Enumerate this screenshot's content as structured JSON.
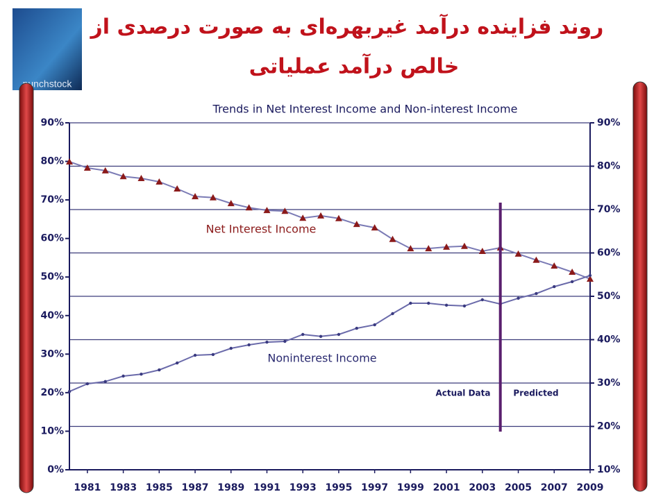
{
  "slide": {
    "title_lines": [
      "روند فزاینده درآمد غیربهره‌ای به صورت درصدی از",
      "خالص درآمد عملیاتی"
    ],
    "logo": "punchstock"
  },
  "chart_data": {
    "type": "line",
    "title": "Trends in Net Interest Income and Non-interest Income",
    "x": [
      1980,
      1981,
      1982,
      1983,
      1984,
      1985,
      1986,
      1987,
      1988,
      1989,
      1990,
      1991,
      1992,
      1993,
      1994,
      1995,
      1996,
      1997,
      1998,
      1999,
      2000,
      2001,
      2002,
      2003,
      2004,
      2005,
      2006,
      2007,
      2008,
      2009
    ],
    "series": [
      {
        "name": "Net Interest Income",
        "color": "#7b7bb5",
        "marker": "triangle",
        "marker_color": "#8b1a1a",
        "values": [
          79.9,
          78.3,
          77.6,
          76.1,
          75.6,
          74.7,
          72.9,
          70.9,
          70.6,
          69.1,
          68,
          67.3,
          67.1,
          65.3,
          65.9,
          65.2,
          63.7,
          62.8,
          59.8,
          57.4,
          57.4,
          57.8,
          58,
          56.7,
          57.6,
          56,
          54.4,
          52.9,
          51.3,
          49.5
        ]
      },
      {
        "name": "Noninterest Income",
        "color": "#6a6aaa",
        "marker": "circle",
        "marker_color": "#3a3a80",
        "values": [
          20.3,
          22.3,
          22.9,
          24.3,
          24.8,
          25.9,
          27.7,
          29.7,
          29.9,
          31.5,
          32.4,
          33.1,
          33.3,
          35.1,
          34.6,
          35.1,
          36.7,
          37.6,
          40.5,
          43.2,
          43.2,
          42.7,
          42.5,
          44.1,
          43,
          44.5,
          45.7,
          47.5,
          48.8,
          50.4
        ]
      }
    ],
    "xlim": [
      1980,
      2009
    ],
    "xticks": [
      1981,
      1983,
      1985,
      1987,
      1989,
      1991,
      1993,
      1995,
      1997,
      1999,
      2001,
      2003,
      2005,
      2007,
      2009
    ],
    "ylim": [
      0,
      90
    ],
    "yticks": [
      {
        "value": 0,
        "label": "0%"
      },
      {
        "value": 10,
        "label": "10%"
      },
      {
        "value": 20,
        "label": "20%"
      },
      {
        "value": 30,
        "label": "30%"
      },
      {
        "value": 40,
        "label": "40%"
      },
      {
        "value": 50,
        "label": "50%"
      },
      {
        "value": 60,
        "label": "60%"
      },
      {
        "value": 70,
        "label": "70%"
      },
      {
        "value": 80,
        "label": "80%"
      },
      {
        "value": 90,
        "label": "90%"
      }
    ],
    "y2lim": [
      10,
      90
    ],
    "y2ticks": [
      {
        "value": 10,
        "label": "10%"
      },
      {
        "value": 20,
        "label": "20%"
      },
      {
        "value": 30,
        "label": "30%"
      },
      {
        "value": 40,
        "label": "40%"
      },
      {
        "value": 50,
        "label": "50%"
      },
      {
        "value": 60,
        "label": "60%"
      },
      {
        "value": 70,
        "label": "70%"
      },
      {
        "value": 80,
        "label": "80%"
      },
      {
        "value": 90,
        "label": "90%"
      }
    ],
    "grid": "y2",
    "reference_line": {
      "x": 2004,
      "color": "#5a1f6e"
    },
    "annotations": [
      "Actual Data",
      "Predicted"
    ]
  }
}
